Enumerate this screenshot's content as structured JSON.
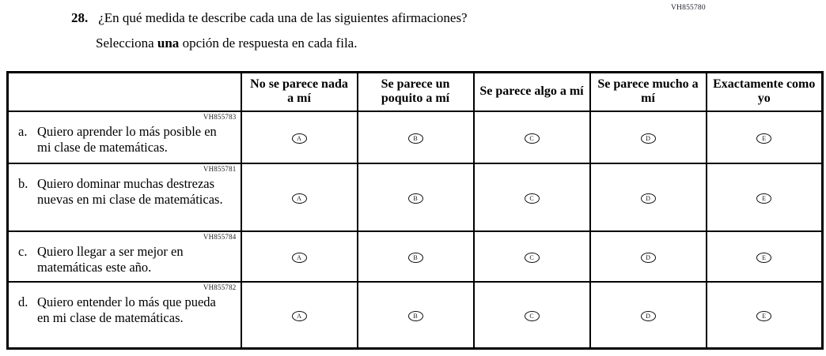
{
  "page": {
    "top_code": "VH855780",
    "question_number": "28.",
    "question_text": "¿En qué medida te describe cada una de las siguientes afirmaciones?",
    "instruction_prefix": "Selecciona ",
    "instruction_bold": "una",
    "instruction_suffix": " opción de respuesta en cada fila."
  },
  "table": {
    "columns": [
      "No se parece nada a mí",
      "Se parece un poquito a mí",
      "Se parece algo a mí",
      "Se parece mucho a mí",
      "Exactamente como yo"
    ],
    "options": [
      "A",
      "B",
      "C",
      "D",
      "E"
    ],
    "rows": [
      {
        "code": "VH855783",
        "label": "a.",
        "text": "Quiero aprender lo más posible en mi clase de matemáticas."
      },
      {
        "code": "VH855781",
        "label": "b.",
        "text": "Quiero dominar muchas destrezas nuevas en mi clase de matemáticas."
      },
      {
        "code": "VH855784",
        "label": "c.",
        "text": "Quiero llegar a ser mejor en matemáticas este año."
      },
      {
        "code": "VH855782",
        "label": "d.",
        "text": "Quiero entender lo más que pueda en mi clase de matemáticas."
      }
    ]
  }
}
